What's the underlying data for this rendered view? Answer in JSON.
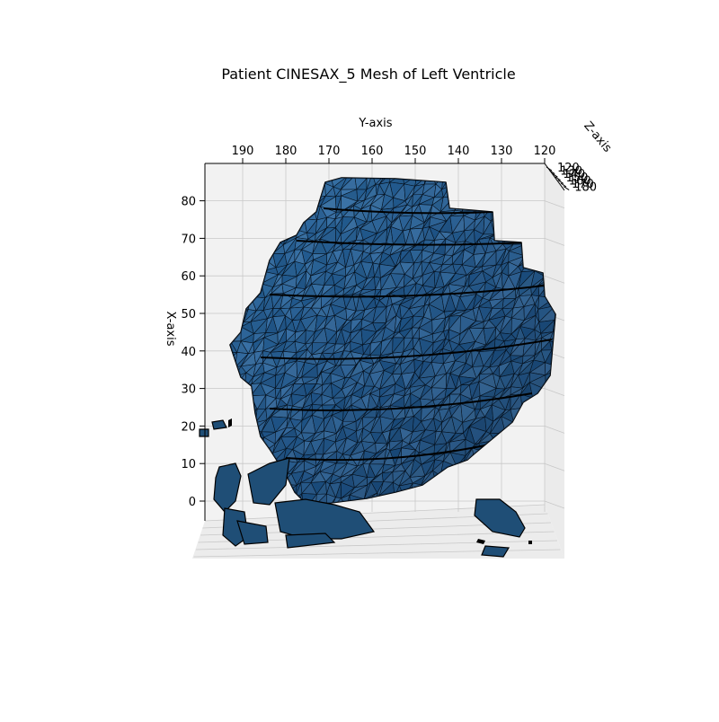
{
  "chart_data": {
    "type": "3d-mesh",
    "title": "Patient CINESAX_5 Mesh of Left Ventricle",
    "xlabel": "X-axis",
    "ylabel": "Y-axis",
    "zlabel": "Z-axis",
    "y_ticks": [
      190,
      180,
      170,
      160,
      150,
      140,
      130,
      120
    ],
    "x_ticks": [
      0,
      10,
      20,
      30,
      40,
      50,
      60,
      70,
      80
    ],
    "z_ticks": [
      120,
      130,
      140,
      150,
      160,
      170,
      180
    ],
    "y_range": [
      200,
      120
    ],
    "x_range": [
      -12,
      88
    ],
    "grid": true,
    "mesh_color": "#2d6a9a",
    "mesh_dark": "#0d1f33",
    "edge_color": "#000000",
    "pane_color": "#f2f2f2",
    "grid_color": "#c8c8c8"
  }
}
